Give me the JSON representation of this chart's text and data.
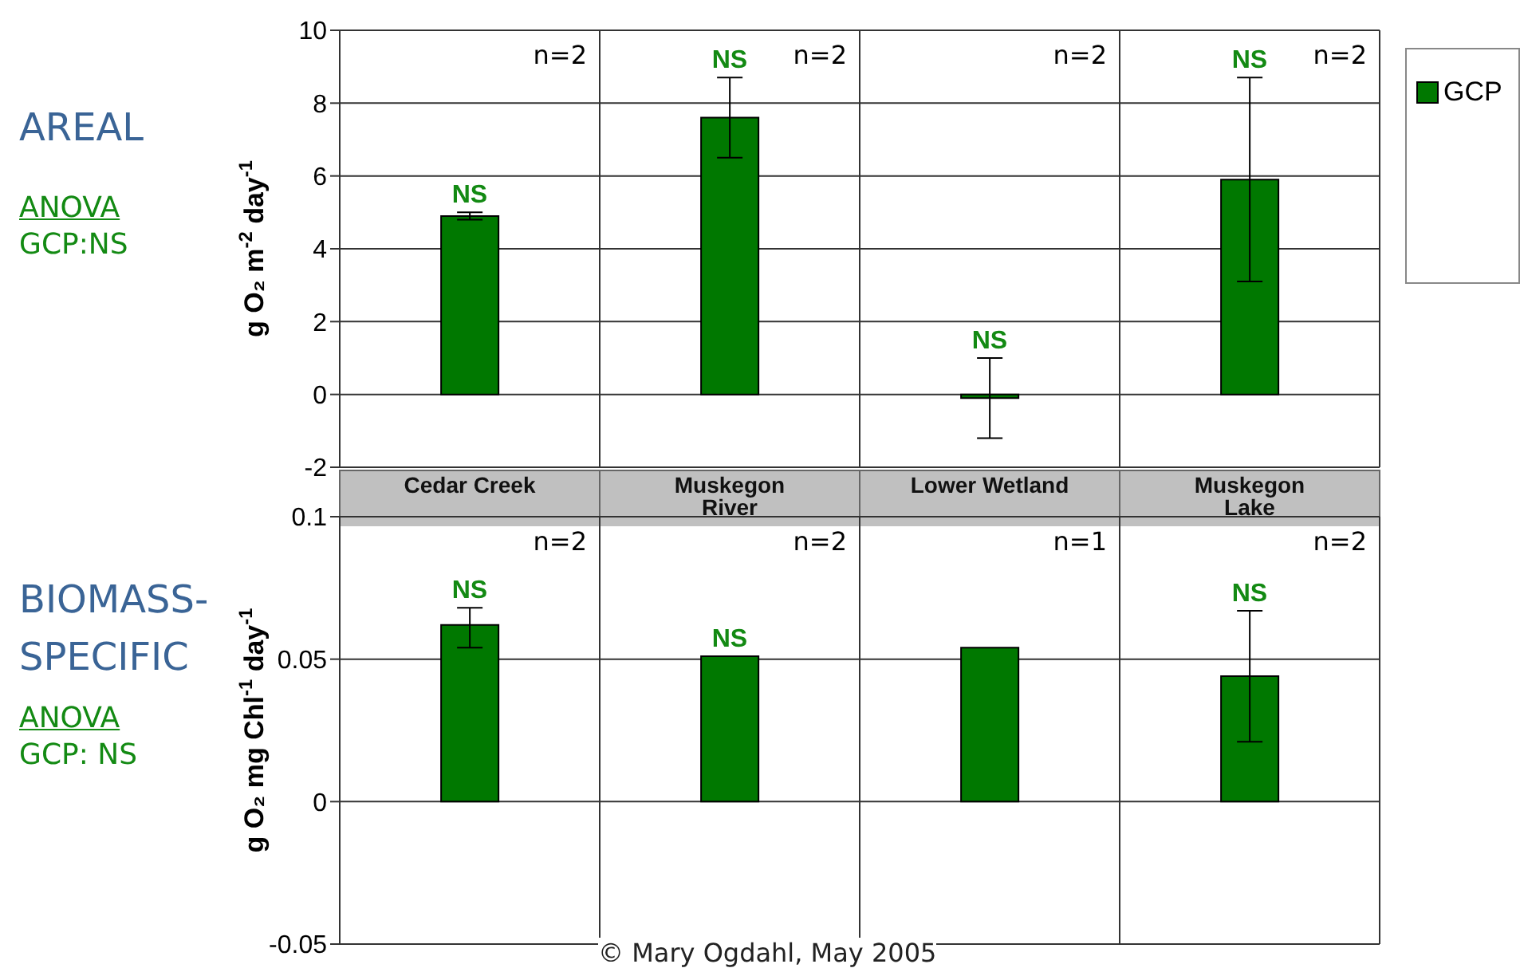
{
  "chart_data": [
    {
      "type": "bar",
      "ylabel": "g O₂ m$^{-2}$ day$^{-1}$",
      "categories": [
        "Cedar Creek",
        "Muskegon River",
        "Lower Wetland",
        "Muskegon Lake"
      ],
      "series": [
        {
          "name": "GCP",
          "color": "#007800",
          "values": [
            4.9,
            7.6,
            -0.1,
            5.9
          ],
          "errors": [
            0.1,
            [
              6.5,
              8.7
            ],
            [
              -1.2,
              1.0
            ],
            [
              3.1,
              8.7
            ]
          ]
        }
      ],
      "ylim": [
        -2,
        10
      ],
      "yticks": [
        -2,
        0,
        2,
        4,
        6,
        8,
        10
      ],
      "grid": true,
      "legend": "top right",
      "annotations": [
        "AREAL",
        "ANOVA",
        "GCP:NS",
        "n=2",
        "n=2",
        "n=2",
        "n=2",
        {
          "text": "NS",
          "x": "Cedar Creek",
          "y": 5.0
        },
        {
          "text": "NS",
          "x": "Muskegon River",
          "y": 8.7
        },
        {
          "text": "NS",
          "x": "Lower Wetland",
          "y": 1.0
        },
        {
          "text": "NS",
          "x": "Muskegon Lake",
          "y": 8.7
        }
      ]
    },
    {
      "type": "bar",
      "ylabel": "g O₂ mg Chl$^{-1}$ day$^{-1}$",
      "categories": [
        "Cedar Creek",
        "Muskegon River",
        "Lower Wetland",
        "Muskegon Lake"
      ],
      "tick_labels": "y",
      "series": [
        {
          "color": "#007800",
          "values": [
            0.062,
            0.051,
            0.054,
            0.044
          ],
          "errors": [
            [
              0.054,
              0.068
            ],
            null,
            null,
            [
              0.021,
              0.067
            ]
          ]
        }
      ],
      "ylim": [
        -0.05,
        0.1
      ],
      "yticks": [
        -0.05,
        0,
        0.05,
        0.1
      ],
      "grid": true,
      "annotations": [
        "BIOMASS-SPECIFIC",
        "ANOVA",
        "GCP: NS",
        "© Mary Ogdahl, May 2005",
        "n=2",
        "n=2",
        "n=1",
        "n=2",
        {
          "text": "NS",
          "x": "Cedar Creek",
          "y": 0.068
        },
        {
          "text": "NS",
          "x": "Muskegon River",
          "y": 0.051
        },
        {
          "text": "NS",
          "x": "Muskegon Lake",
          "y": 0.067
        }
      ]
    }
  ]
}
